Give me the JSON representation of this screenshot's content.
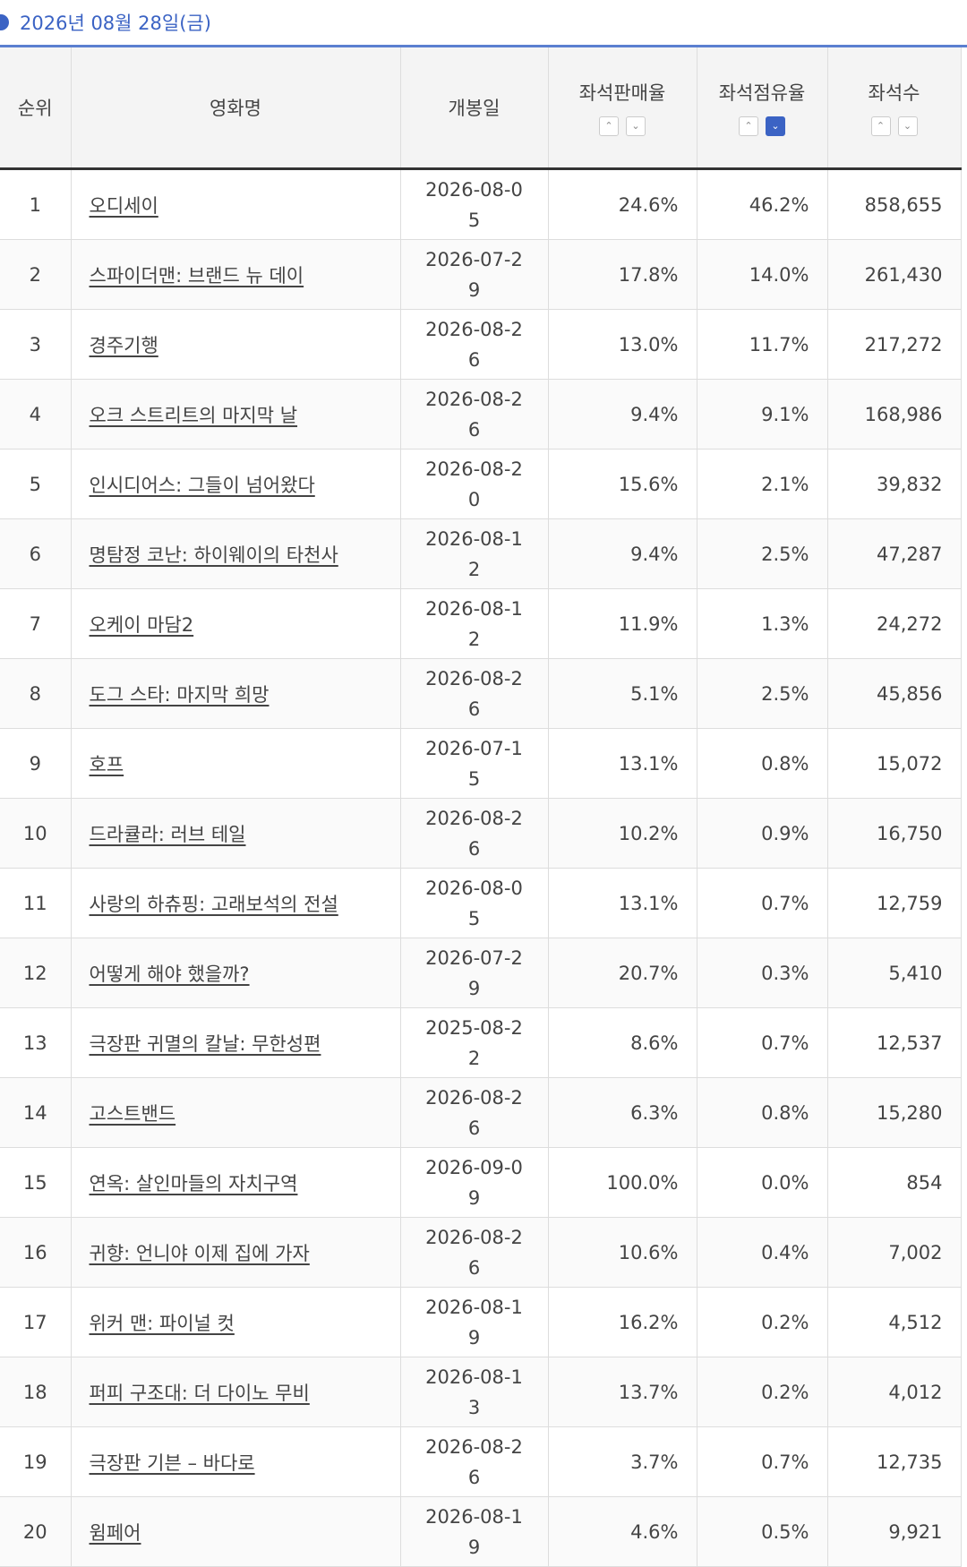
{
  "header": {
    "date": "2026년 08월 28일(금)"
  },
  "table": {
    "columns": [
      "순위",
      "영화명",
      "개봉일",
      "좌석판매율",
      "좌석점유율",
      "좌석수"
    ],
    "rows": [
      [
        "1",
        "오디세이",
        "2026-08-05",
        "24.6%",
        "46.2%",
        "858,655"
      ],
      [
        "2",
        "스파이더맨: 브랜드 뉴 데이",
        "2026-07-29",
        "17.8%",
        "14.0%",
        "261,430"
      ],
      [
        "3",
        "경주기행",
        "2026-08-26",
        "13.0%",
        "11.7%",
        "217,272"
      ],
      [
        "4",
        "오크 스트리트의 마지막 날",
        "2026-08-26",
        "9.4%",
        "9.1%",
        "168,986"
      ],
      [
        "5",
        "인시디어스: 그들이 넘어왔다",
        "2026-08-20",
        "15.6%",
        "2.1%",
        "39,832"
      ],
      [
        "6",
        "명탐정 코난: 하이웨이의 타천사",
        "2026-08-12",
        "9.4%",
        "2.5%",
        "47,287"
      ],
      [
        "7",
        "오케이 마담2",
        "2026-08-12",
        "11.9%",
        "1.3%",
        "24,272"
      ],
      [
        "8",
        "도그 스타: 마지막 희망",
        "2026-08-26",
        "5.1%",
        "2.5%",
        "45,856"
      ],
      [
        "9",
        "호프",
        "2026-07-15",
        "13.1%",
        "0.8%",
        "15,072"
      ],
      [
        "10",
        "드라큘라: 러브 테일",
        "2026-08-26",
        "10.2%",
        "0.9%",
        "16,750"
      ],
      [
        "11",
        "사랑의 하츄핑: 고래보석의 전설",
        "2026-08-05",
        "13.1%",
        "0.7%",
        "12,759"
      ],
      [
        "12",
        "어떻게 해야 했을까?",
        "2026-07-29",
        "20.7%",
        "0.3%",
        "5,410"
      ],
      [
        "13",
        "극장판 귀멸의 칼날: 무한성편",
        "2025-08-22",
        "8.6%",
        "0.7%",
        "12,537"
      ],
      [
        "14",
        "고스트밴드",
        "2026-08-26",
        "6.3%",
        "0.8%",
        "15,280"
      ],
      [
        "15",
        "연옥: 살인마들의 자치구역",
        "2026-09-09",
        "100.0%",
        "0.0%",
        "854"
      ],
      [
        "16",
        "귀향: 언니야 이제 집에 가자",
        "2026-08-26",
        "10.6%",
        "0.4%",
        "7,002"
      ],
      [
        "17",
        "위커 맨: 파이널 컷",
        "2026-08-19",
        "16.2%",
        "0.2%",
        "4,512"
      ],
      [
        "18",
        "퍼피 구조대: 더 다이노 무비",
        "2026-08-13",
        "13.7%",
        "0.2%",
        "4,012"
      ],
      [
        "19",
        "극장판 기븐 – 바다로",
        "2026-08-26",
        "3.7%",
        "0.7%",
        "12,735"
      ],
      [
        "20",
        "윔페어",
        "2026-08-19",
        "4.6%",
        "0.5%",
        "9,921"
      ]
    ]
  }
}
